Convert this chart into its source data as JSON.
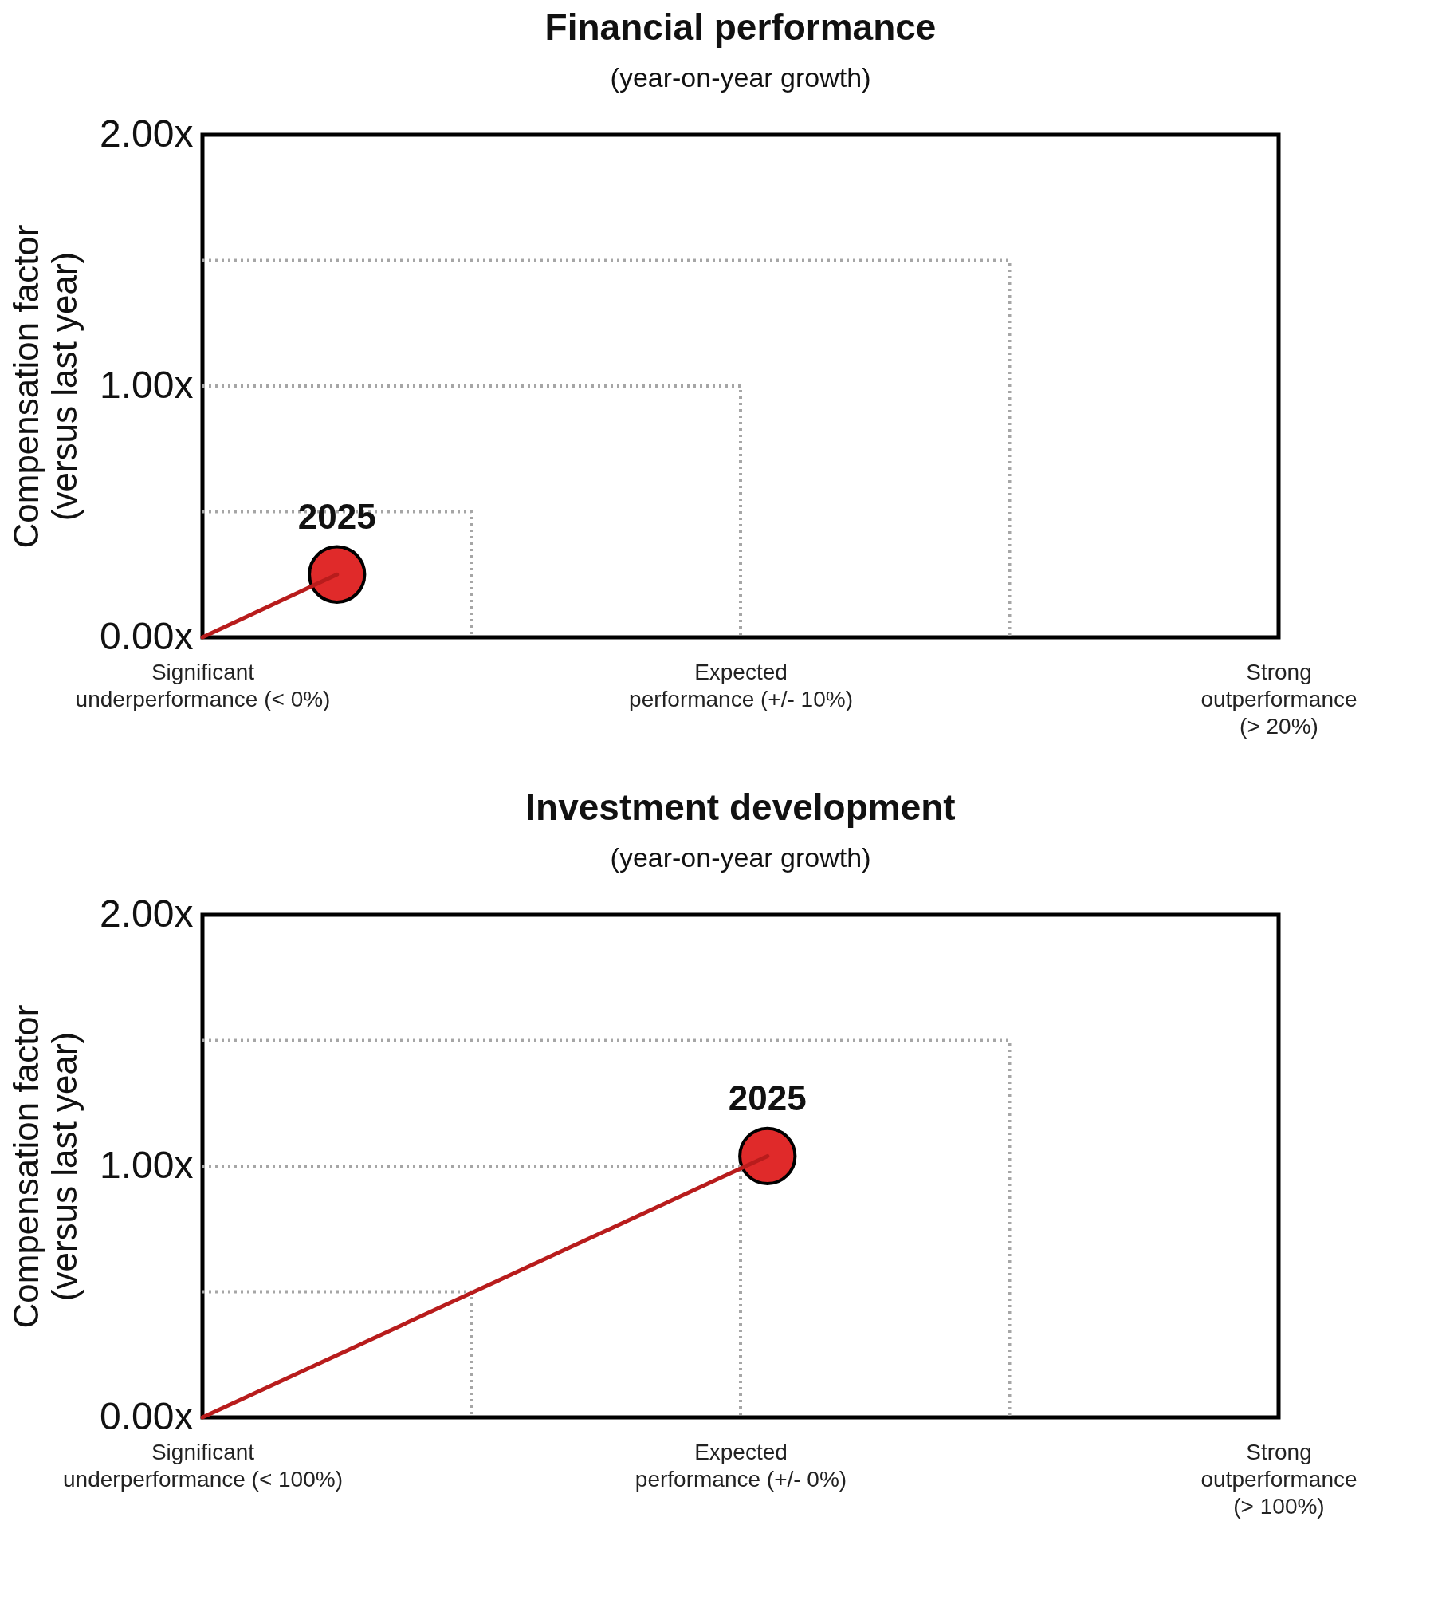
{
  "chart_data": [
    {
      "type": "line",
      "title": "Financial performance",
      "subtitle": "(year-on-year growth)",
      "ylabel": "Compensation factor\n(versus last year)",
      "categories": [
        "Significant\nunderperformance (< 0%)",
        null,
        null,
        null,
        null,
        null,
        null,
        null,
        null,
        null,
        null,
        null,
        null,
        null,
        null,
        null,
        null,
        null,
        null,
        null,
        "Expected\nperformance (+/- 10%)",
        null,
        null,
        null,
        null,
        null,
        null,
        null,
        null,
        null,
        null,
        null,
        null,
        null,
        null,
        null,
        null,
        null,
        null,
        null,
        "Strong\noutperformance\n(> 20%)"
      ],
      "ylim": [
        0,
        2
      ],
      "yticks": [
        {
          "value": 0,
          "label": "0.00x"
        },
        {
          "value": 1,
          "label": "1.00x"
        },
        {
          "value": 2,
          "label": "2.00x"
        }
      ],
      "series": [
        {
          "type": "step",
          "color": "#a6a6a6",
          "line_style": "dotted",
          "values": [
            0.5,
            null,
            null,
            null,
            null,
            null,
            null,
            null,
            null,
            null,
            0,
            null,
            null,
            null,
            null,
            null,
            null,
            null,
            null,
            null,
            null,
            null,
            null,
            null,
            null,
            null,
            null,
            null,
            null,
            null,
            null,
            null,
            null,
            null,
            null,
            null,
            null,
            null,
            null,
            null,
            null
          ]
        },
        {
          "type": "step",
          "color": "#a6a6a6",
          "line_style": "dotted",
          "values": [
            1,
            null,
            null,
            null,
            null,
            null,
            null,
            null,
            null,
            null,
            null,
            null,
            null,
            null,
            null,
            null,
            null,
            null,
            null,
            null,
            0,
            null,
            null,
            null,
            null,
            null,
            null,
            null,
            null,
            null,
            null,
            null,
            null,
            null,
            null,
            null,
            null,
            null,
            null,
            null,
            null
          ]
        },
        {
          "type": "step",
          "color": "#a6a6a6",
          "line_style": "dotted",
          "values": [
            1.5,
            null,
            null,
            null,
            null,
            null,
            null,
            null,
            null,
            null,
            null,
            null,
            null,
            null,
            null,
            null,
            null,
            null,
            null,
            null,
            null,
            null,
            null,
            null,
            null,
            null,
            null,
            null,
            null,
            null,
            0,
            null,
            null,
            null,
            null,
            null,
            null,
            null,
            null,
            null,
            null
          ]
        },
        {
          "color": "#b81c1c",
          "line_style": "solid",
          "values": [
            0,
            null,
            null,
            null,
            null,
            0.25,
            null,
            null,
            null,
            null,
            null,
            null,
            null,
            null,
            null,
            null,
            null,
            null,
            null,
            null,
            null,
            null,
            null,
            null,
            null,
            null,
            null,
            null,
            null,
            null,
            null,
            null,
            null,
            null,
            null,
            null,
            null,
            null,
            null,
            null,
            null
          ]
        },
        {
          "type": "scatter",
          "color": "#e02a2a",
          "marker": "circle",
          "values": [
            null,
            null,
            null,
            null,
            null,
            0.25,
            null,
            null,
            null,
            null,
            null,
            null,
            null,
            null,
            null,
            null,
            null,
            null,
            null,
            null,
            null,
            null,
            null,
            null,
            null,
            null,
            null,
            null,
            null,
            null,
            null,
            null,
            null,
            null,
            null,
            null,
            null,
            null,
            null,
            null,
            null
          ]
        }
      ],
      "annotations": [
        "2025"
      ]
    },
    {
      "type": "line",
      "title": "Investment development",
      "subtitle": "(year-on-year growth)",
      "ylabel": "Compensation factor\n(versus last year)",
      "categories": [
        "Significant\nunderperformance (< 100%)",
        null,
        null,
        null,
        null,
        null,
        null,
        null,
        null,
        null,
        null,
        null,
        null,
        null,
        null,
        null,
        null,
        null,
        null,
        null,
        "Expected\nperformance (+/- 0%)",
        null,
        null,
        null,
        null,
        null,
        null,
        null,
        null,
        null,
        null,
        null,
        null,
        null,
        null,
        null,
        null,
        null,
        null,
        null,
        "Strong\noutperformance\n(> 100%)"
      ],
      "ylim": [
        0,
        2
      ],
      "yticks": [
        {
          "value": 0,
          "label": "0.00x"
        },
        {
          "value": 1,
          "label": "1.00x"
        },
        {
          "value": 2,
          "label": "2.00x"
        }
      ],
      "series": [
        {
          "type": "step",
          "color": "#a6a6a6",
          "line_style": "dotted",
          "values": [
            0.5,
            null,
            null,
            null,
            null,
            null,
            null,
            null,
            null,
            null,
            0,
            null,
            null,
            null,
            null,
            null,
            null,
            null,
            null,
            null,
            null,
            null,
            null,
            null,
            null,
            null,
            null,
            null,
            null,
            null,
            null,
            null,
            null,
            null,
            null,
            null,
            null,
            null,
            null,
            null,
            null
          ]
        },
        {
          "type": "step",
          "color": "#a6a6a6",
          "line_style": "dotted",
          "values": [
            1,
            null,
            null,
            null,
            null,
            null,
            null,
            null,
            null,
            null,
            null,
            null,
            null,
            null,
            null,
            null,
            null,
            null,
            null,
            null,
            0,
            null,
            null,
            null,
            null,
            null,
            null,
            null,
            null,
            null,
            null,
            null,
            null,
            null,
            null,
            null,
            null,
            null,
            null,
            null,
            null
          ]
        },
        {
          "type": "step",
          "color": "#a6a6a6",
          "line_style": "dotted",
          "values": [
            1.5,
            null,
            null,
            null,
            null,
            null,
            null,
            null,
            null,
            null,
            null,
            null,
            null,
            null,
            null,
            null,
            null,
            null,
            null,
            null,
            null,
            null,
            null,
            null,
            null,
            null,
            null,
            null,
            null,
            null,
            0,
            null,
            null,
            null,
            null,
            null,
            null,
            null,
            null,
            null,
            null
          ]
        },
        {
          "color": "#b81c1c",
          "line_style": "solid",
          "values": [
            0,
            null,
            null,
            null,
            null,
            null,
            null,
            null,
            null,
            null,
            null,
            null,
            null,
            null,
            null,
            null,
            null,
            null,
            null,
            null,
            null,
            1.04,
            null,
            null,
            null,
            null,
            null,
            null,
            null,
            null,
            null,
            null,
            null,
            null,
            null,
            null,
            null,
            null,
            null,
            null,
            null
          ]
        },
        {
          "type": "scatter",
          "color": "#e02a2a",
          "marker": "circle",
          "values": [
            null,
            null,
            null,
            null,
            null,
            null,
            null,
            null,
            null,
            null,
            null,
            null,
            null,
            null,
            null,
            null,
            null,
            null,
            null,
            null,
            null,
            1.04,
            null,
            null,
            null,
            null,
            null,
            null,
            null,
            null,
            null,
            null,
            null,
            null,
            null,
            null,
            null,
            null,
            null,
            null,
            null
          ]
        }
      ],
      "annotations": [
        "2025"
      ]
    }
  ]
}
